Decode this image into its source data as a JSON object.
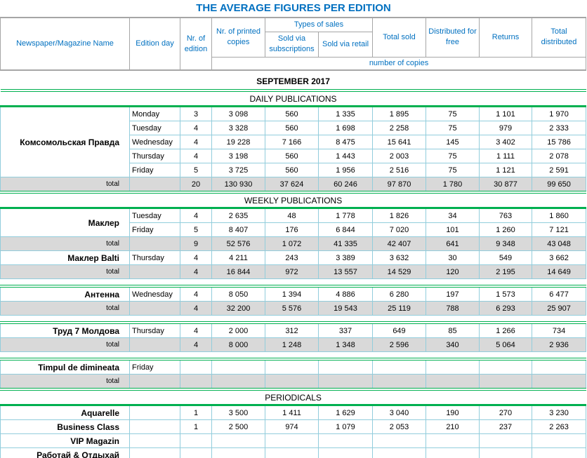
{
  "title": "THE AVERAGE FIGURES PER EDITION",
  "headers": {
    "name": "Newspaper/Magazine Name",
    "edition_day": "Edition day",
    "nr_edition": "Nr. of edition",
    "printed": "Nr. of printed copies",
    "types_of_sales": "Types of sales",
    "subscriptions": "Sold via subscriptions",
    "retail": "Sold via retail",
    "total_sold": "Total sold",
    "free": "Distributed for free",
    "returns": "Returns",
    "total_distributed": "Total distributed",
    "unit": "number of copies"
  },
  "period": "SEPTEMBER 2017",
  "total_label": "total",
  "sections": [
    {
      "title": "DAILY PUBLICATIONS",
      "blocks": [
        [
          {
            "name": "Комсомольская Правда",
            "days": [
              {
                "day": "Monday",
                "values": [
                  "3",
                  "3 098",
                  "560",
                  "1 335",
                  "1 895",
                  "75",
                  "1 101",
                  "1 970"
                ]
              },
              {
                "day": "Tuesday",
                "values": [
                  "4",
                  "3 328",
                  "560",
                  "1 698",
                  "2 258",
                  "75",
                  "979",
                  "2 333"
                ]
              },
              {
                "day": "Wednesday",
                "values": [
                  "4",
                  "19 228",
                  "7 166",
                  "8 475",
                  "15 641",
                  "145",
                  "3 402",
                  "15 786"
                ]
              },
              {
                "day": "Thursday",
                "values": [
                  "4",
                  "3 198",
                  "560",
                  "1 443",
                  "2 003",
                  "75",
                  "1 111",
                  "2 078"
                ]
              },
              {
                "day": "Friday",
                "values": [
                  "5",
                  "3 725",
                  "560",
                  "1 956",
                  "2 516",
                  "75",
                  "1 121",
                  "2 591"
                ]
              }
            ],
            "total": [
              "20",
              "130 930",
              "37 624",
              "60 246",
              "97 870",
              "1 780",
              "30 877",
              "99 650"
            ]
          }
        ]
      ]
    },
    {
      "title": "WEEKLY PUBLICATIONS",
      "blocks": [
        [
          {
            "name": "Маклер",
            "days": [
              {
                "day": "Tuesday",
                "values": [
                  "4",
                  "2 635",
                  "48",
                  "1 778",
                  "1 826",
                  "34",
                  "763",
                  "1 860"
                ]
              },
              {
                "day": "Friday",
                "values": [
                  "5",
                  "8 407",
                  "176",
                  "6 844",
                  "7 020",
                  "101",
                  "1 260",
                  "7 121"
                ]
              }
            ],
            "total": [
              "9",
              "52 576",
              "1 072",
              "41 335",
              "42 407",
              "641",
              "9 348",
              "43 048"
            ]
          },
          {
            "name": "Маклер Balti",
            "days": [
              {
                "day": "Thursday",
                "values": [
                  "4",
                  "4 211",
                  "243",
                  "3 389",
                  "3 632",
                  "30",
                  "549",
                  "3 662"
                ]
              }
            ],
            "total": [
              "4",
              "16 844",
              "972",
              "13 557",
              "14 529",
              "120",
              "2 195",
              "14 649"
            ]
          }
        ],
        [
          {
            "name": "Антенна",
            "days": [
              {
                "day": "Wednesday",
                "values": [
                  "4",
                  "8 050",
                  "1 394",
                  "4 886",
                  "6 280",
                  "197",
                  "1 573",
                  "6 477"
                ]
              }
            ],
            "total": [
              "4",
              "32 200",
              "5 576",
              "19 543",
              "25 119",
              "788",
              "6 293",
              "25 907"
            ]
          }
        ],
        [
          {
            "name": "Труд 7 Молдова",
            "days": [
              {
                "day": "Thursday",
                "values": [
                  "4",
                  "2 000",
                  "312",
                  "337",
                  "649",
                  "85",
                  "1 266",
                  "734"
                ]
              }
            ],
            "total": [
              "4",
              "8 000",
              "1 248",
              "1 348",
              "2 596",
              "340",
              "5 064",
              "2 936"
            ]
          }
        ],
        [
          {
            "name": "Timpul de dimineata",
            "days": [
              {
                "day": "Friday",
                "values": [
                  "",
                  "",
                  "",
                  "",
                  "",
                  "",
                  "",
                  ""
                ]
              }
            ],
            "total": [
              "",
              "",
              "",
              "",
              "",
              "",
              "",
              ""
            ]
          }
        ]
      ]
    },
    {
      "title": "PERIODICALS",
      "rows": [
        {
          "name": "Aquarelle",
          "day": "",
          "values": [
            "1",
            "3 500",
            "1 411",
            "1 629",
            "3 040",
            "190",
            "270",
            "3 230"
          ]
        },
        {
          "name": "Business Class",
          "day": "",
          "values": [
            "1",
            "2 500",
            "974",
            "1 079",
            "2 053",
            "210",
            "237",
            "2 263"
          ]
        },
        {
          "name": "VIP Magazin",
          "day": "",
          "values": [
            "",
            "",
            "",
            "",
            "",
            "",
            "",
            ""
          ]
        },
        {
          "name": "Работай & Отдыхай",
          "day": "",
          "values": [
            "",
            "",
            "",
            "",
            "",
            "",
            "",
            ""
          ]
        }
      ]
    }
  ]
}
